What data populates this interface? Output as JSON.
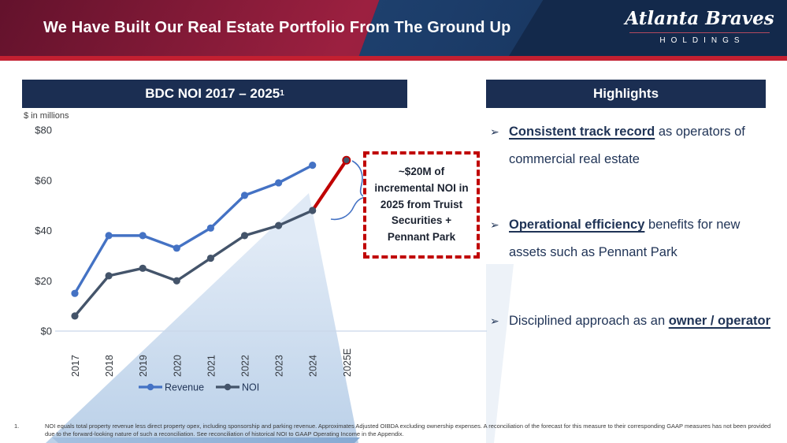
{
  "header": {
    "title": "We Have Built Our Real Estate Portfolio From The Ground Up",
    "logo": {
      "script_text": "Atlanta Braves",
      "sub_text": "HOLDINGS"
    },
    "colors": {
      "red": "#9C2040",
      "navy": "#13294B",
      "accent_strip": "#C32031"
    }
  },
  "chart_panel": {
    "title": "BDC NOI 2017 – 2025",
    "title_superscript": "1",
    "units_label": "$ in millions"
  },
  "chart_data": {
    "type": "line",
    "title": "BDC NOI 2017 – 2025",
    "ylabel": "$ in millions",
    "x": [
      "2017",
      "2018",
      "2019",
      "2020",
      "2021",
      "2022",
      "2023",
      "2024",
      "2025E"
    ],
    "series": [
      {
        "name": "Revenue",
        "color": "#4472C4",
        "values": [
          15,
          38,
          38,
          33,
          41,
          54,
          59,
          66,
          null
        ]
      },
      {
        "name": "NOI",
        "color": "#44546A",
        "values": [
          6,
          22,
          25,
          20,
          29,
          38,
          42,
          48,
          68
        ]
      }
    ],
    "highlight_segment": {
      "series": "NOI",
      "from_x": "2024",
      "to_x": "2025E",
      "color": "#C00000"
    },
    "ylim": [
      0,
      80
    ],
    "y_ticks": [
      0,
      20,
      40,
      60,
      80
    ],
    "y_tick_labels": [
      "$0",
      "$20",
      "$40",
      "$60",
      "$80"
    ],
    "grid": false,
    "legend_position": "bottom"
  },
  "annotation": {
    "text": "~$20M of incremental NOI in 2025 from Truist Securities + Pennant Park",
    "border_color": "#C00000"
  },
  "highlights": {
    "title": "Highlights",
    "bullet_glyph": "➢",
    "bullets": [
      {
        "parts": [
          {
            "text": "Consistent track record",
            "emphasis": true
          },
          {
            "text": " as operators of commercial real estate",
            "emphasis": false
          }
        ]
      },
      {
        "parts": [
          {
            "text": "Operational efficiency",
            "emphasis": true
          },
          {
            "text": " benefits for new assets such as Pennant Park",
            "emphasis": false
          }
        ]
      },
      {
        "parts": [
          {
            "text": "Disciplined approach as an ",
            "emphasis": false
          },
          {
            "text": "owner / operator",
            "emphasis": true
          }
        ]
      }
    ]
  },
  "footnote": {
    "number": "1.",
    "text": "NOI equals total property revenue less direct property opex, including sponsorship and parking revenue. Approximates Adjusted OIBDA excluding ownership expenses. A reconciliation of the forecast for this measure to their corresponding GAAP measures has not been provided due to the forward-looking nature of such a reconciliation. See reconciliation of historical NOI to GAAP Operating Income in the Appendix."
  }
}
